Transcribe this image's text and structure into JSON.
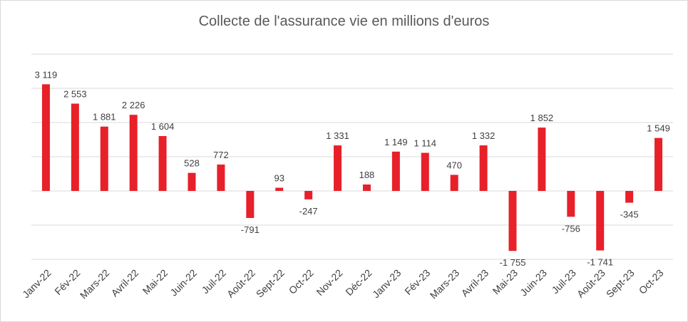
{
  "chart_data": {
    "type": "bar",
    "title": "Collecte de l'assurance vie en millions d'euros",
    "categories": [
      "Janv-22",
      "Fév-22",
      "Mars-22",
      "Avril-22",
      "Mai-22",
      "Juin-22",
      "Juil-22",
      "Août-22",
      "Sept-22",
      "Oct-22",
      "Nov-22",
      "Déc-22",
      "Janv-23",
      "Fév-23",
      "Mars-23",
      "Avril-23",
      "Mai-23",
      "Juin-23",
      "Juil-23",
      "Août-23",
      "Sept-23",
      "Oct-23"
    ],
    "values": [
      3119,
      2553,
      1881,
      2226,
      1604,
      528,
      772,
      -791,
      93,
      -247,
      1331,
      188,
      1149,
      1114,
      470,
      1332,
      -1755,
      1852,
      -756,
      -1741,
      -345,
      1549
    ],
    "labels": [
      "3 119",
      "2 553",
      "1 881",
      "2 226",
      "1 604",
      "528",
      "772",
      "-791",
      "93",
      "-247",
      "1 331",
      "188",
      "1 149",
      "1 114",
      "470",
      "1 332",
      "-1 755",
      "1 852",
      "-756",
      "-1 741",
      "-345",
      "1 549"
    ],
    "ylim": [
      -2000,
      4000
    ],
    "grid": true,
    "xlabel": "",
    "ylabel": "",
    "colors": {
      "bar": "#e8202a",
      "grid": "#d9d9d9",
      "text": "#404040",
      "title": "#595959"
    }
  }
}
